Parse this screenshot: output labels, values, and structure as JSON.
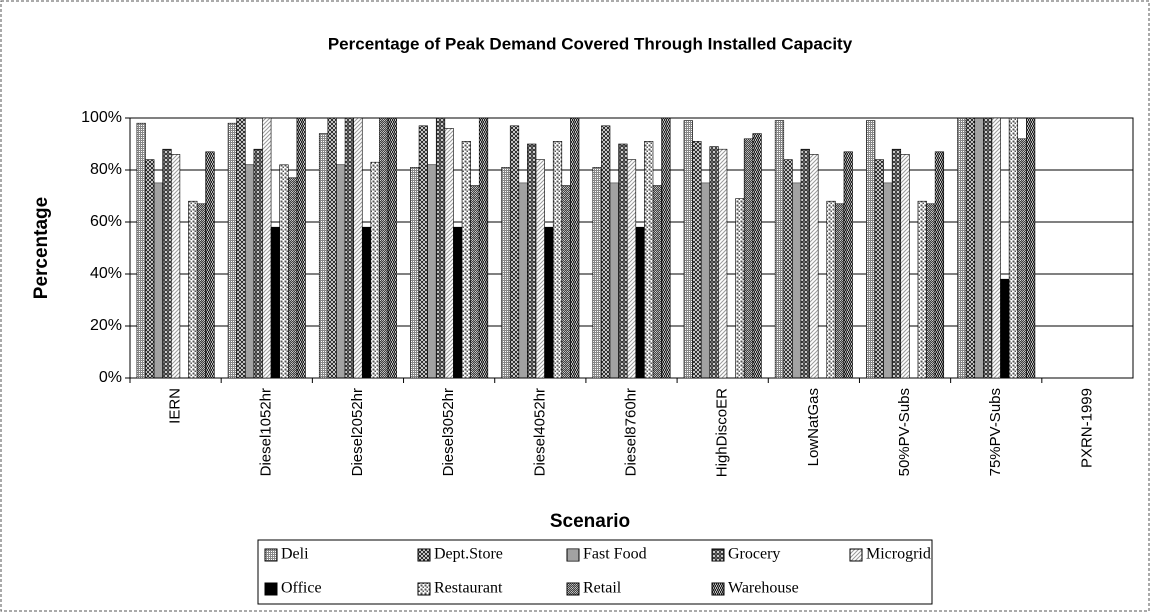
{
  "chart_data": {
    "type": "bar",
    "title": "Percentage of Peak Demand Covered Through Installed Capacity",
    "x_label": "Scenario",
    "y_label": "Percentage",
    "categories": [
      "IERN",
      "Diesel1052hr",
      "Diesel2052hr",
      "Diesel3052hr",
      "Diesel4052hr",
      "Diesel8760hr",
      "HighDiscoER",
      "LowNatGas",
      "50%PV-Subs",
      "75%PV-Subs",
      "PXRN-1999"
    ],
    "series": [
      {
        "name": "Deli",
        "color": "#888888",
        "values": [
          98,
          98,
          94,
          81,
          81,
          81,
          99,
          99,
          99,
          100,
          null
        ]
      },
      {
        "name": "Dept.Store",
        "color": "#222222",
        "values": [
          84,
          100,
          100,
          97,
          97,
          97,
          91,
          84,
          84,
          100,
          null
        ]
      },
      {
        "name": "Fast Food",
        "color": "#444444",
        "values": [
          75,
          82,
          82,
          82,
          75,
          75,
          75,
          75,
          75,
          100,
          null
        ]
      },
      {
        "name": "Grocery",
        "color": "#333333",
        "values": [
          88,
          88,
          100,
          100,
          90,
          90,
          89,
          88,
          88,
          100,
          null
        ]
      },
      {
        "name": "Microgrid",
        "color": "#999999",
        "values": [
          86,
          100,
          100,
          96,
          84,
          84,
          88,
          86,
          86,
          100,
          null
        ]
      },
      {
        "name": "Office",
        "color": "#000000",
        "values": [
          0,
          58,
          58,
          58,
          58,
          58,
          0,
          0,
          0,
          38,
          null
        ]
      },
      {
        "name": "Restaurant",
        "color": "#555555",
        "values": [
          68,
          82,
          83,
          91,
          91,
          91,
          69,
          68,
          68,
          100,
          null
        ]
      },
      {
        "name": "Retail",
        "color": "#333333",
        "values": [
          67,
          77,
          100,
          74,
          74,
          74,
          92,
          67,
          67,
          92,
          null
        ]
      },
      {
        "name": "Warehouse",
        "color": "#111111",
        "values": [
          87,
          100,
          100,
          100,
          100,
          100,
          94,
          87,
          87,
          100,
          null
        ]
      }
    ],
    "ylim": [
      0,
      100
    ],
    "yticks": [
      {
        "value": 0,
        "label": "0%"
      },
      {
        "value": 20,
        "label": "20%"
      },
      {
        "value": 40,
        "label": "40%"
      },
      {
        "value": 60,
        "label": "60%"
      },
      {
        "value": 80,
        "label": "80%"
      },
      {
        "value": 100,
        "label": "100%"
      }
    ],
    "grid": true
  }
}
